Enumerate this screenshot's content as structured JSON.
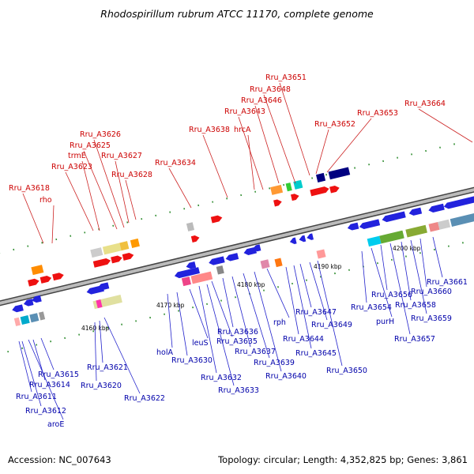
{
  "title": "Rhodospirillum rubrum ATCC 11170, complete genome",
  "footer": {
    "accession": "Accession: NC_007643",
    "stats": "Topology: circular; Length: 4,352,825 bp; Genes: 3,861"
  },
  "colors": {
    "label_top": "#cc0000",
    "label_bottom": "#0000aa",
    "genome_line": "#777777",
    "forward_gene": "#ee1111",
    "reverse_gene": "#2222dd",
    "leader_top": "#cc2222",
    "leader_bottom": "#2222cc"
  },
  "scale_ticks": [
    "4160 kbp",
    "4170 kbp",
    "4180 kbp",
    "4190 kbp",
    "4200 kbp"
  ],
  "top_labels": [
    "Rru_A3618",
    "rho",
    "Rru_A3623",
    "trmE",
    "Rru_A3625",
    "Rru_A3626",
    "Rru_A3627",
    "Rru_A3628",
    "Rru_A3634",
    "Rru_A3638",
    "hrcA",
    "Rru_A3643",
    "Rru_A3646",
    "Rru_A3648",
    "Rru_A3651",
    "Rru_A3652",
    "Rru_A3653",
    "Rru_A3664"
  ],
  "bottom_labels": [
    "Rru_A3611",
    "Rru_A3612",
    "aroE",
    "Rru_A3614",
    "Rru_A3615",
    "Rru_A3620",
    "Rru_A3621",
    "Rru_A3622",
    "holA",
    "Rru_A3630",
    "leuS",
    "Rru_A3632",
    "Rru_A3633",
    "Rru_A3635",
    "Rru_A3636",
    "Rru_A3637",
    "Rru_A3639",
    "Rru_A3640",
    "rph",
    "Rru_A3644",
    "Rru_A3645",
    "Rru_A3647",
    "Rru_A3649",
    "Rru_A3650",
    "Rru_A3654",
    "purH",
    "Rru_A3656",
    "Rru_A3657",
    "Rru_A3658",
    "Rru_A3659",
    "Rru_A3660",
    "Rru_A3661"
  ]
}
